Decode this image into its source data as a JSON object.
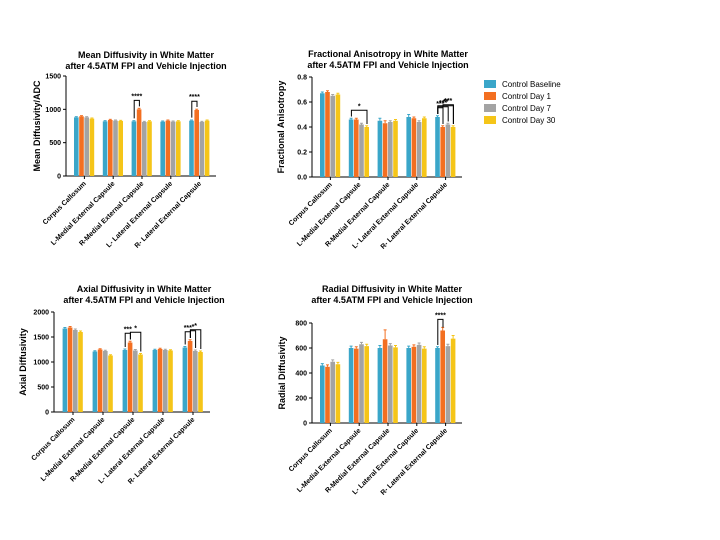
{
  "legend": {
    "items": [
      {
        "label": "Control Baseline",
        "color": "#3aa6c9"
      },
      {
        "label": "Control Day 1",
        "color": "#f36f21"
      },
      {
        "label": "Control Day 7",
        "color": "#a3a3a3"
      },
      {
        "label": "Control Day 30",
        "color": "#f5c518"
      }
    ]
  },
  "chart_data": [
    {
      "type": "bar",
      "title": "Mean Diffusivity in White Matter\nafter 4.5ATM FPI and Vehicle Injection",
      "xlabel": "",
      "ylabel": "Mean Diffusivity/ADC",
      "ylim": [
        0,
        1500
      ],
      "yticks": [
        0,
        500,
        1000,
        1500
      ],
      "categories": [
        "Corpus Callosum",
        "L-Medial External Capsule",
        "R-Medial External Capsule",
        "L- Lateral External Capsule",
        "R- Lateral External Capsule"
      ],
      "series": [
        {
          "name": "Control Baseline",
          "values": [
            880,
            820,
            820,
            815,
            830
          ],
          "errors": [
            10,
            10,
            10,
            10,
            10
          ]
        },
        {
          "name": "Control Day 1",
          "values": [
            895,
            840,
            1000,
            830,
            990
          ],
          "errors": [
            10,
            10,
            15,
            10,
            12
          ]
        },
        {
          "name": "Control Day 7",
          "values": [
            880,
            830,
            810,
            815,
            810
          ],
          "errors": [
            10,
            10,
            10,
            10,
            10
          ]
        },
        {
          "name": "Control Day 30",
          "values": [
            860,
            825,
            820,
            820,
            830
          ],
          "errors": [
            10,
            10,
            10,
            10,
            10
          ]
        }
      ],
      "annotations": [
        {
          "text": "****",
          "category": 2,
          "from": 0,
          "to": [
            1
          ]
        },
        {
          "text": "****",
          "category": 4,
          "from": 0,
          "to": [
            1
          ]
        }
      ]
    },
    {
      "type": "bar",
      "title": "Fractional Anisotropy in White Matter\nafter 4.5ATM FPI and Vehicle Injection",
      "xlabel": "",
      "ylabel": "Fractional Anisotropy",
      "ylim": [
        0,
        0.8
      ],
      "yticks": [
        0.0,
        0.2,
        0.4,
        0.6,
        0.8
      ],
      "categories": [
        "Corpus Callosum",
        "L-Medial External Capsule",
        "R-Medial External Capsule",
        "L- Lateral External Capsule",
        "R- Lateral External Capsule"
      ],
      "series": [
        {
          "name": "Control Baseline",
          "values": [
            0.67,
            0.46,
            0.45,
            0.48,
            0.48
          ],
          "errors": [
            0.01,
            0.01,
            0.02,
            0.02,
            0.01
          ]
        },
        {
          "name": "Control Day 1",
          "values": [
            0.68,
            0.46,
            0.43,
            0.47,
            0.4
          ],
          "errors": [
            0.01,
            0.01,
            0.02,
            0.01,
            0.01
          ]
        },
        {
          "name": "Control Day 7",
          "values": [
            0.65,
            0.42,
            0.44,
            0.44,
            0.42
          ],
          "errors": [
            0.01,
            0.01,
            0.01,
            0.01,
            0.01
          ]
        },
        {
          "name": "Control Day 30",
          "values": [
            0.66,
            0.4,
            0.45,
            0.47,
            0.4
          ],
          "errors": [
            0.01,
            0.01,
            0.01,
            0.01,
            0.01
          ]
        }
      ],
      "annotations": [
        {
          "text": "*",
          "category": 1,
          "from": 0,
          "to": [
            3
          ]
        },
        {
          "text": "***",
          "category": 4,
          "from": 0,
          "to": [
            1
          ]
        },
        {
          "text": "***",
          "category": 4,
          "from": 0,
          "to": [
            2
          ]
        },
        {
          "text": "**",
          "category": 4,
          "from": 0,
          "to": [
            3
          ]
        },
        {
          "text": "***",
          "category": 4,
          "from": 1,
          "to": [
            3
          ]
        }
      ]
    },
    {
      "type": "bar",
      "title": "Axial Diffusivity in White Matter\nafter 4.5ATM FPI and Vehicle Injection",
      "xlabel": "",
      "ylabel": "Axial Diffusivity",
      "ylim": [
        0,
        2000
      ],
      "yticks": [
        0,
        500,
        1000,
        1500,
        2000
      ],
      "categories": [
        "Corpus Callosum",
        "L-Medial External Capsule",
        "R-Medial External Capsule",
        "L- Lateral External Capsule",
        "R- Lateral External Capsule"
      ],
      "series": [
        {
          "name": "Control Baseline",
          "values": [
            1670,
            1210,
            1240,
            1240,
            1290
          ],
          "errors": [
            20,
            15,
            20,
            15,
            20
          ]
        },
        {
          "name": "Control Day 1",
          "values": [
            1690,
            1250,
            1390,
            1260,
            1420
          ],
          "errors": [
            20,
            15,
            25,
            15,
            25
          ]
        },
        {
          "name": "Control Day 7",
          "values": [
            1640,
            1220,
            1230,
            1240,
            1220
          ],
          "errors": [
            20,
            15,
            20,
            15,
            20
          ]
        },
        {
          "name": "Control Day 30",
          "values": [
            1600,
            1130,
            1150,
            1230,
            1200
          ],
          "errors": [
            20,
            15,
            20,
            15,
            20
          ]
        }
      ],
      "annotations": [
        {
          "text": "***",
          "category": 2,
          "from": 0,
          "to": [
            1
          ]
        },
        {
          "text": "*",
          "category": 2,
          "from": 1,
          "to": [
            3
          ]
        },
        {
          "text": "***",
          "category": 4,
          "from": 0,
          "to": [
            1
          ]
        },
        {
          "text": "*",
          "category": 4,
          "from": 1,
          "to": [
            2
          ]
        },
        {
          "text": "*",
          "category": 4,
          "from": 1,
          "to": [
            3
          ]
        }
      ]
    },
    {
      "type": "bar",
      "title": "Radial Diffusivity in White Matter\nafter 4.5ATM FPI and Vehicle Injection",
      "xlabel": "",
      "ylabel": "Radial Diffusivity",
      "ylim": [
        0,
        800
      ],
      "yticks": [
        0,
        200,
        400,
        600,
        800
      ],
      "categories": [
        "Corpus Callosum",
        "L-Medial External Capsule",
        "R-Medial External Capsule",
        "L- Lateral External Capsule",
        "R- Lateral External Capsule"
      ],
      "series": [
        {
          "name": "Control Baseline",
          "values": [
            460,
            600,
            600,
            600,
            600
          ],
          "errors": [
            15,
            15,
            20,
            15,
            10
          ]
        },
        {
          "name": "Control Day 1",
          "values": [
            450,
            595,
            670,
            610,
            740
          ],
          "errors": [
            15,
            15,
            75,
            15,
            25
          ]
        },
        {
          "name": "Control Day 7",
          "values": [
            490,
            630,
            620,
            625,
            615
          ],
          "errors": [
            15,
            15,
            15,
            15,
            15
          ]
        },
        {
          "name": "Control Day 30",
          "values": [
            470,
            615,
            605,
            595,
            675
          ],
          "errors": [
            15,
            15,
            15,
            15,
            25
          ]
        }
      ],
      "annotations": [
        {
          "text": "****",
          "category": 4,
          "from": 0,
          "to": [
            1
          ]
        }
      ]
    }
  ]
}
